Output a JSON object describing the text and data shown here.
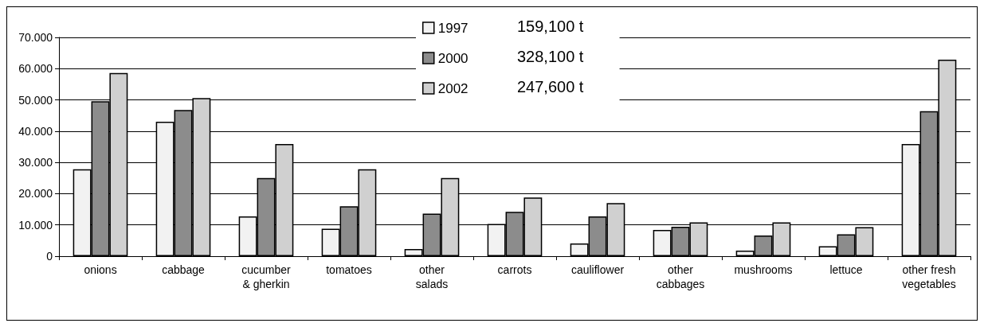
{
  "chart_data": {
    "type": "bar",
    "categories": [
      "onions",
      "cabbage",
      "cucumber\n& gherkin",
      "tomatoes",
      "other\nsalads",
      "carrots",
      "cauliflower",
      "other\ncabbages",
      "mushrooms",
      "lettuce",
      "other fresh\nvegetables"
    ],
    "series": [
      {
        "name": "1997",
        "color": "#f2f2f2",
        "values": [
          27800,
          43000,
          12700,
          8800,
          2300,
          10300,
          4100,
          8400,
          1800,
          3200,
          35900
        ]
      },
      {
        "name": "2000",
        "color": "#8c8c8c",
        "values": [
          49600,
          46800,
          25000,
          16000,
          13600,
          14200,
          12700,
          9400,
          6600,
          7000,
          46400
        ]
      },
      {
        "name": "2002",
        "color": "#d0d0d0",
        "values": [
          58600,
          50600,
          35900,
          27800,
          25000,
          18800,
          17000,
          10800,
          10800,
          9300,
          62900
        ]
      }
    ],
    "annotations": [
      "159,100 t",
      "328,100 t",
      "247,600 t"
    ],
    "ylim": [
      0,
      70000
    ],
    "yticks": [
      {
        "value": 0,
        "label": "0"
      },
      {
        "value": 10000,
        "label": "10.000"
      },
      {
        "value": 20000,
        "label": "20.000"
      },
      {
        "value": 30000,
        "label": "30.000"
      },
      {
        "value": 40000,
        "label": "40.000"
      },
      {
        "value": 50000,
        "label": "50.000"
      },
      {
        "value": 60000,
        "label": "60.000"
      },
      {
        "value": 70000,
        "label": "70.000"
      }
    ],
    "grid": true,
    "legend": "top"
  }
}
